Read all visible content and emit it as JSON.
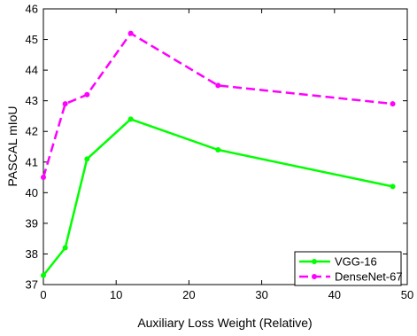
{
  "chart_data": {
    "type": "line",
    "title": "",
    "xlabel": "Auxiliary Loss Weight (Relative)",
    "ylabel": "PASCAL mIoU",
    "xlim": [
      0,
      50
    ],
    "ylim": [
      37,
      46
    ],
    "xticks": [
      0,
      10,
      20,
      30,
      40,
      50
    ],
    "yticks": [
      37,
      38,
      39,
      40,
      41,
      42,
      43,
      44,
      45,
      46
    ],
    "grid": false,
    "legend_position": "bottom-right",
    "series": [
      {
        "name": "VGG-16",
        "color": "#00ff00",
        "line_style": "solid",
        "x": [
          0,
          3,
          6,
          12,
          24,
          48
        ],
        "y": [
          37.3,
          38.2,
          41.1,
          42.4,
          41.4,
          40.2
        ]
      },
      {
        "name": "DenseNet-67",
        "color": "#ff00ff",
        "line_style": "dashed",
        "x": [
          0,
          3,
          6,
          12,
          24,
          48
        ],
        "y": [
          40.5,
          42.9,
          43.2,
          45.2,
          43.5,
          42.9
        ]
      }
    ]
  }
}
